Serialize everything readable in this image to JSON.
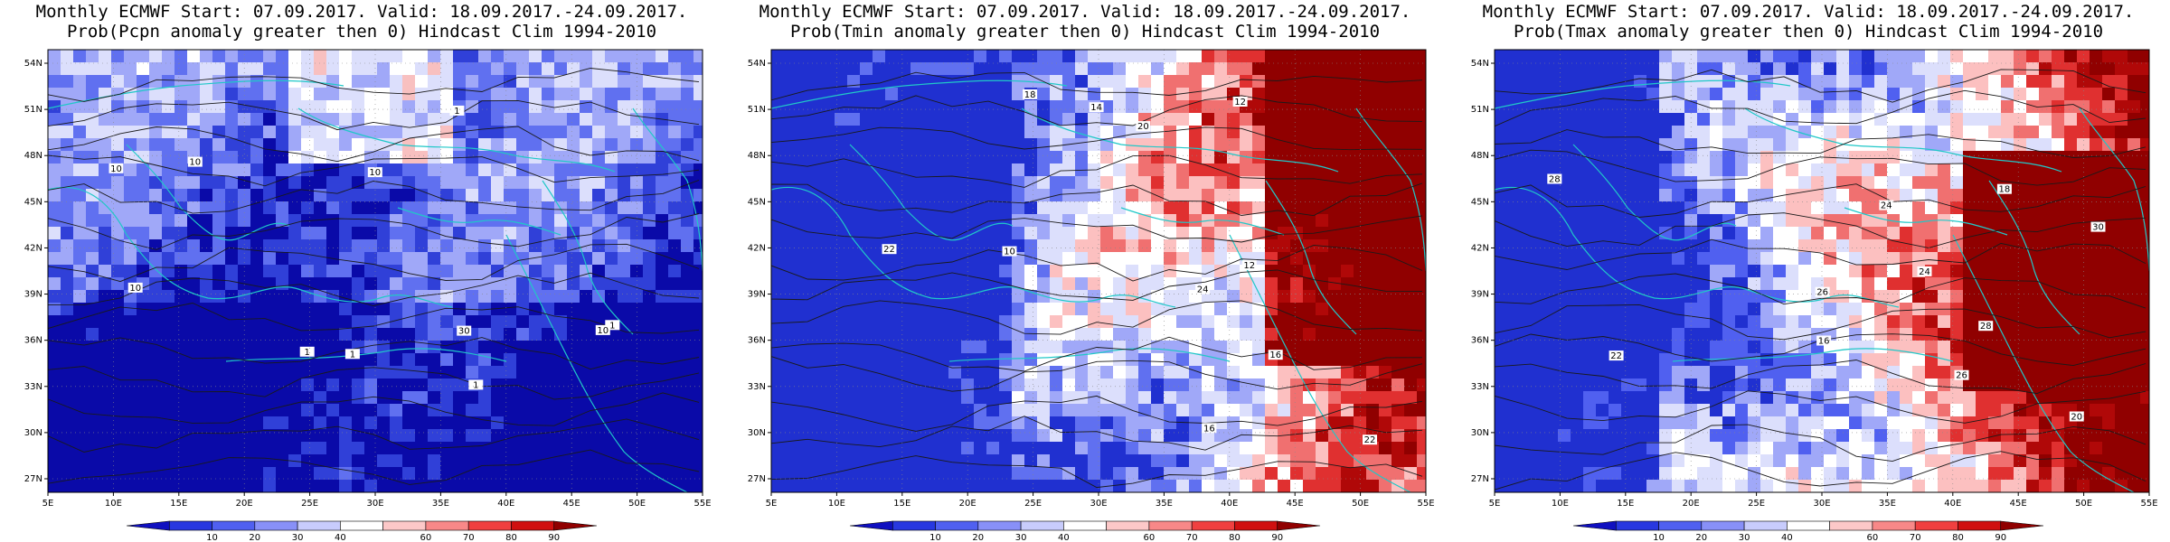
{
  "panels": [
    {
      "title_line1": "Monthly ECMWF Start: 07.09.2017. Valid: 18.09.2017.-24.09.2017.",
      "title_line2": "Prob(Pcpn anomaly greater then 0) Hindcast Clim 1994-2010",
      "field": "precip",
      "dominant": "#1c24c8",
      "contour_labels": [
        "10",
        "1",
        "10",
        "1",
        "10",
        "30",
        "10",
        "1",
        "1",
        "1",
        "10"
      ]
    },
    {
      "title_line1": "Monthly ECMWF Start: 07.09.2017. Valid: 18.09.2017.-24.09.2017.",
      "title_line2": "Prob(Tmin anomaly greater then 0) Hindcast Clim 1994-2010",
      "field": "tmin",
      "dominant": "#4a58e8",
      "contour_labels": [
        "10",
        "12",
        "14",
        "16",
        "18",
        "20",
        "22",
        "24",
        "12",
        "16",
        "22"
      ]
    },
    {
      "title_line1": "Monthly ECMWF Start: 07.09.2017. Valid: 18.09.2017.-24.09.2017.",
      "title_line2": "Prob(Tmax anomaly greater then 0) Hindcast Clim 1994-2010",
      "field": "tmax",
      "dominant": "#6a78f0",
      "contour_labels": [
        "16",
        "18",
        "20",
        "22",
        "24",
        "26",
        "28",
        "30",
        "24",
        "26",
        "28"
      ]
    }
  ],
  "axes": {
    "lon_ticks": [
      "5E",
      "10E",
      "15E",
      "20E",
      "25E",
      "30E",
      "35E",
      "40E",
      "45E",
      "50E",
      "55E"
    ],
    "lat_ticks": [
      "54N",
      "51N",
      "48N",
      "45N",
      "42N",
      "39N",
      "36N",
      "33N",
      "30N",
      "27N"
    ]
  },
  "colorbar": {
    "labels": [
      "10",
      "20",
      "30",
      "40",
      "60",
      "70",
      "80",
      "90"
    ],
    "colors": [
      "#1010c0",
      "#2838e0",
      "#5060f0",
      "#8890f8",
      "#c8ccfc",
      "#ffffff",
      "#fcc8c8",
      "#f88888",
      "#f04040",
      "#d01010",
      "#900000"
    ]
  }
}
